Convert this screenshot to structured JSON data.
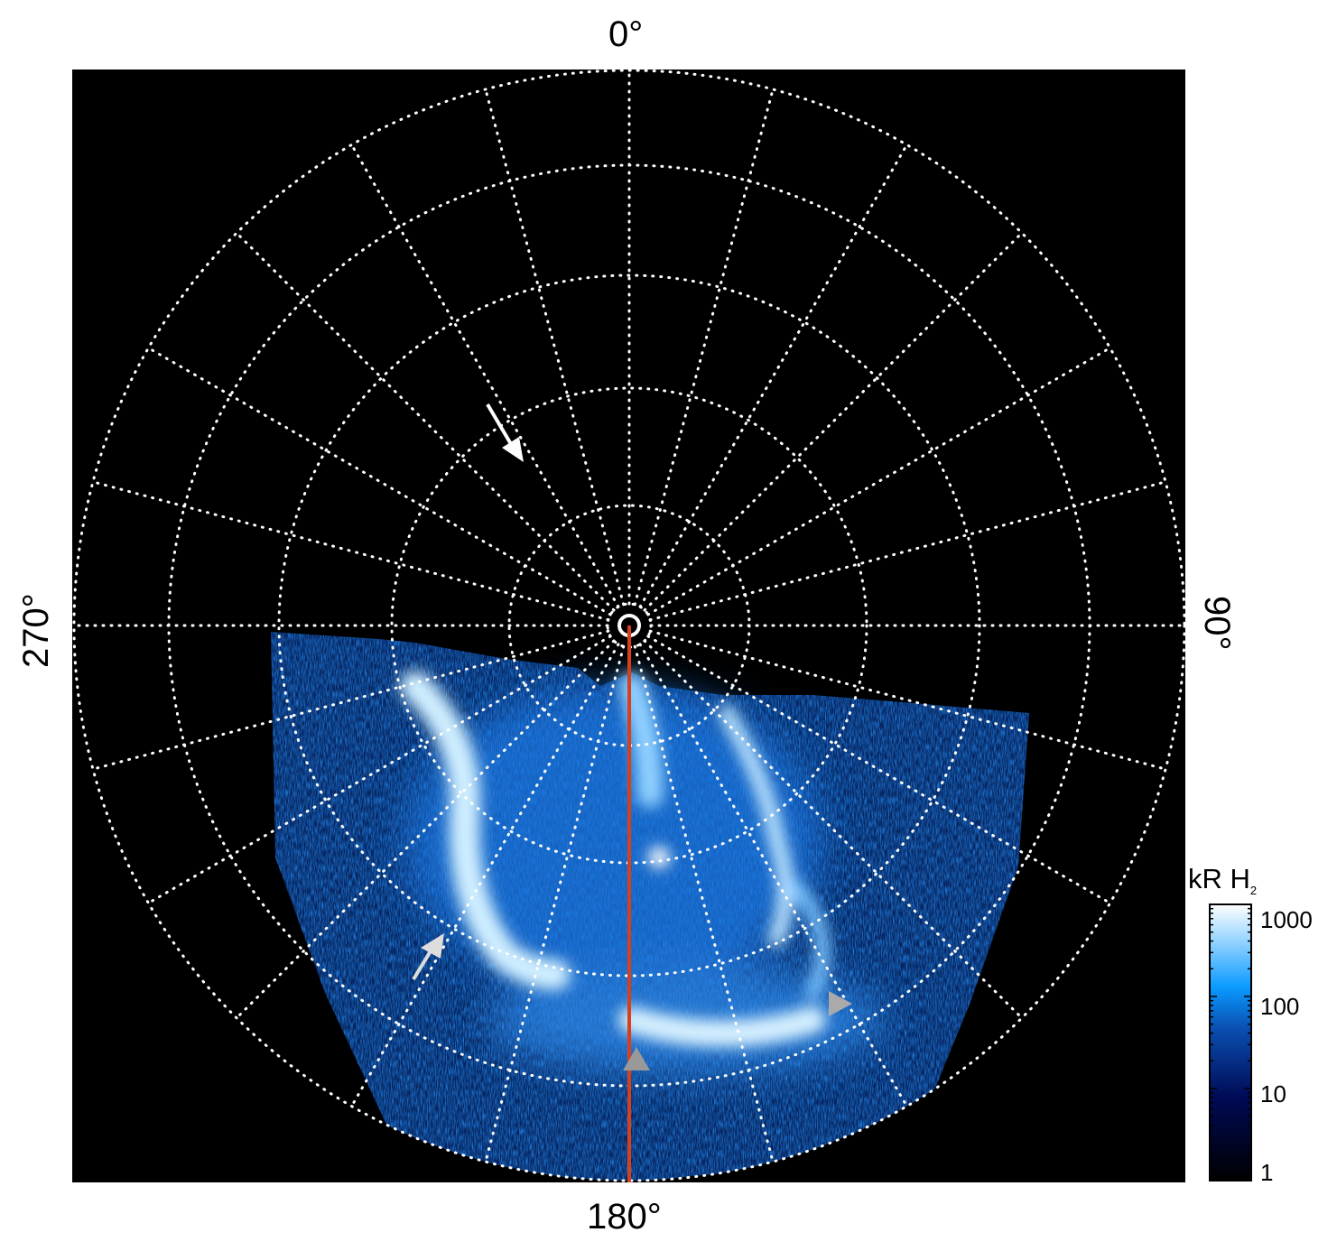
{
  "map": {
    "longitude_labels": {
      "top": "0°",
      "bottom": "180°",
      "left": "270°",
      "right": "90°"
    },
    "projection": "polar",
    "grid": "dotted white, 15° meridians",
    "meridian_line_color": "#d9401a",
    "background": "#000000"
  },
  "colorbar": {
    "title": "kR H",
    "title_subscript": "2",
    "scale": "log",
    "range": [
      1,
      1000
    ],
    "ticks": [
      "1000",
      "100",
      "10",
      "1"
    ],
    "colormap": [
      "#000000",
      "#000a55",
      "#0a4fb0",
      "#0a9aff",
      "#9fd8ff",
      "#ffffff"
    ]
  }
}
